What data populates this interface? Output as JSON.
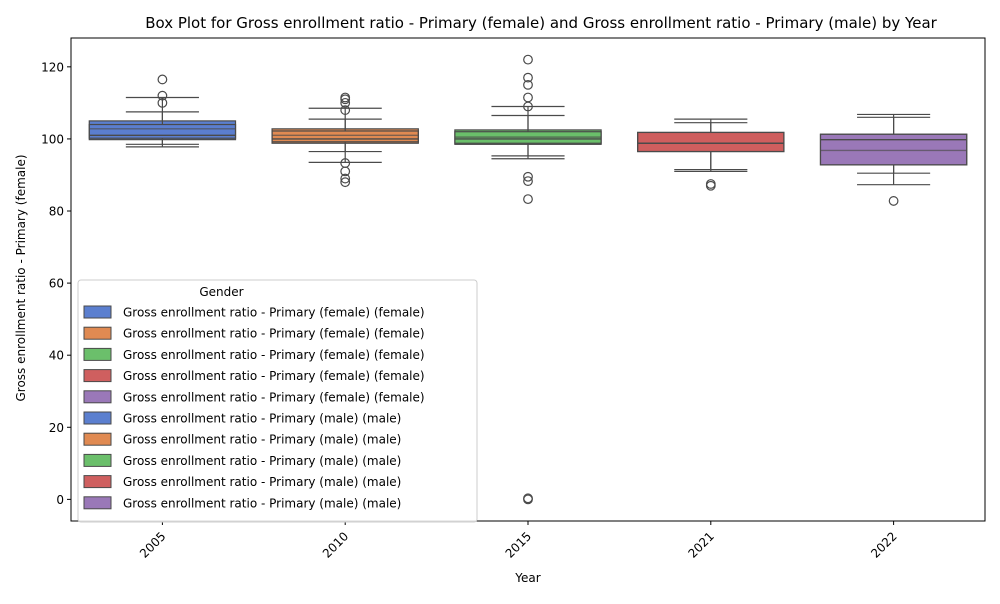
{
  "chart_data": {
    "type": "box",
    "title": "Box Plot for Gross enrollment ratio - Primary (female) and Gross enrollment ratio - Primary (male) by Year",
    "xlabel": "Year",
    "ylabel": "Gross enrollment ratio - Primary (female)",
    "categories": [
      "2005",
      "2010",
      "2015",
      "2021",
      "2022"
    ],
    "ylim": [
      -6,
      128
    ],
    "yticks": [
      0,
      20,
      40,
      60,
      80,
      100,
      120
    ],
    "grid": false,
    "legend": {
      "title": "Gender",
      "placement": "lower-left",
      "entries": [
        {
          "label": "Gross enrollment ratio - Primary (female) (female)",
          "color": "#5b7fcf"
        },
        {
          "label": "Gross enrollment ratio - Primary (female) (female)",
          "color": "#e08a52"
        },
        {
          "label": "Gross enrollment ratio - Primary (female) (female)",
          "color": "#6bbf6b"
        },
        {
          "label": "Gross enrollment ratio - Primary (female) (female)",
          "color": "#cf5f5f"
        },
        {
          "label": "Gross enrollment ratio - Primary (female) (female)",
          "color": "#9a78b8"
        },
        {
          "label": "Gross enrollment ratio - Primary (male) (male)",
          "color": "#5b7fcf"
        },
        {
          "label": "Gross enrollment ratio - Primary (male) (male)",
          "color": "#e08a52"
        },
        {
          "label": "Gross enrollment ratio - Primary (male) (male)",
          "color": "#6bbf6b"
        },
        {
          "label": "Gross enrollment ratio - Primary (male) (male)",
          "color": "#cf5f5f"
        },
        {
          "label": "Gross enrollment ratio - Primary (male) (male)",
          "color": "#9a78b8"
        }
      ]
    },
    "series": [
      {
        "year": "2005",
        "color": "#5b7fcf",
        "q1": 99.8,
        "median": 102.8,
        "q3": 105.0,
        "boxes": [
          {
            "q1": 99.8,
            "median": 102.8,
            "q3": 105.0,
            "whisker_low": 98.5,
            "whisker_high": 111.5
          },
          {
            "q1": 100.2,
            "median": 101.0,
            "q3": 104.0,
            "whisker_low": 97.8,
            "whisker_high": 107.5
          }
        ],
        "outliers": [
          116.5,
          112.0,
          110.0
        ]
      },
      {
        "year": "2010",
        "color": "#e08a52",
        "boxes": [
          {
            "q1": 98.8,
            "median": 101.0,
            "q3": 102.8,
            "whisker_low": 93.5,
            "whisker_high": 108.5
          },
          {
            "q1": 99.2,
            "median": 100.0,
            "q3": 102.2,
            "whisker_low": 96.5,
            "whisker_high": 105.5
          }
        ],
        "outliers": [
          111.5,
          111.0,
          110.0,
          108.0,
          93.3,
          91.0,
          89.0,
          88.0
        ]
      },
      {
        "year": "2015",
        "color": "#6bbf6b",
        "boxes": [
          {
            "q1": 98.5,
            "median": 100.5,
            "q3": 102.5,
            "whisker_low": 94.5,
            "whisker_high": 109.0
          },
          {
            "q1": 98.8,
            "median": 100.0,
            "q3": 102.0,
            "whisker_low": 95.3,
            "whisker_high": 106.5
          }
        ],
        "outliers": [
          122.0,
          117.0,
          115.0,
          111.5,
          109.0,
          89.5,
          88.3,
          83.3,
          0.3,
          0.0
        ]
      },
      {
        "year": "2021",
        "color": "#cf5f5f",
        "boxes": [
          {
            "q1": 96.5,
            "median": 98.8,
            "q3": 101.8,
            "whisker_low": 91.0,
            "whisker_high": 105.5
          },
          {
            "q1": 96.5,
            "median": 98.8,
            "q3": 101.8,
            "whisker_low": 91.5,
            "whisker_high": 104.5
          }
        ],
        "outliers": [
          87.5,
          87.0
        ]
      },
      {
        "year": "2022",
        "color": "#9a78b8",
        "boxes": [
          {
            "q1": 92.8,
            "median": 96.8,
            "q3": 101.3,
            "whisker_low": 87.3,
            "whisker_high": 106.8
          },
          {
            "q1": 92.8,
            "median": 99.8,
            "q3": 101.3,
            "whisker_low": 90.5,
            "whisker_high": 106.0
          }
        ],
        "outliers": [
          82.8
        ]
      }
    ]
  }
}
